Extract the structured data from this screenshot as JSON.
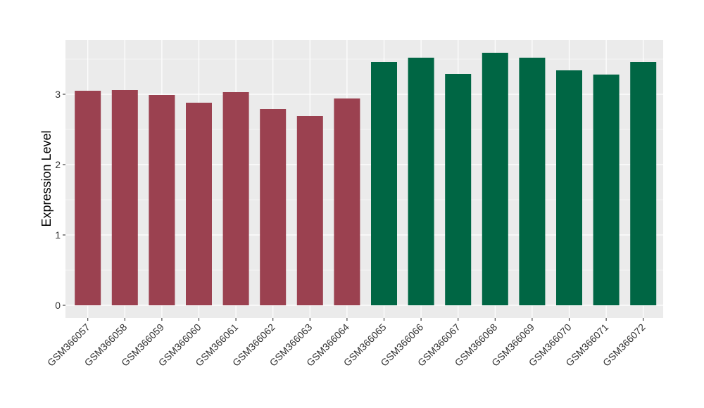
{
  "chart_data": {
    "type": "bar",
    "ylabel": "Expression Level",
    "xlabel": "",
    "ylim": [
      -0.18,
      3.77
    ],
    "yticks": [
      0,
      1,
      2,
      3
    ],
    "grid": true,
    "categories": [
      "GSM366057",
      "GSM366058",
      "GSM366059",
      "GSM366060",
      "GSM366061",
      "GSM366062",
      "GSM366063",
      "GSM366064",
      "GSM366065",
      "GSM366066",
      "GSM366067",
      "GSM366068",
      "GSM366069",
      "GSM366070",
      "GSM366071",
      "GSM366072"
    ],
    "values": [
      3.05,
      3.06,
      2.99,
      2.88,
      3.03,
      2.79,
      2.69,
      2.94,
      3.46,
      3.52,
      3.29,
      3.59,
      3.52,
      3.34,
      3.28,
      3.46
    ],
    "colors": [
      "#9b4150",
      "#9b4150",
      "#9b4150",
      "#9b4150",
      "#9b4150",
      "#9b4150",
      "#9b4150",
      "#9b4150",
      "#006644",
      "#006644",
      "#006644",
      "#006644",
      "#006644",
      "#006644",
      "#006644",
      "#006644"
    ],
    "panel_background": "#ebebeb",
    "grid_color": "#ffffff"
  }
}
